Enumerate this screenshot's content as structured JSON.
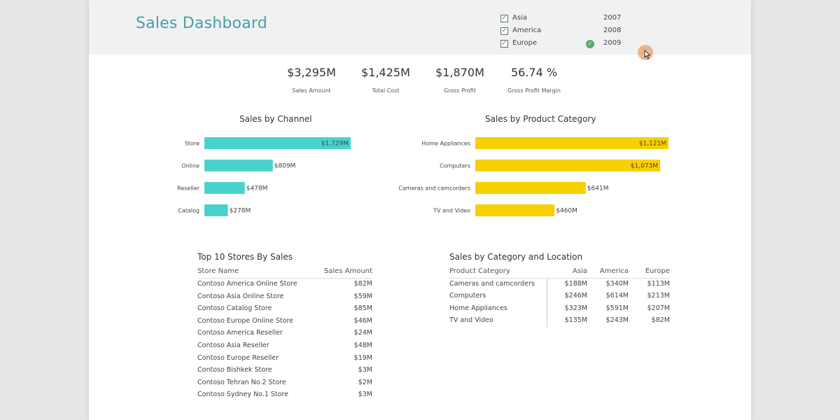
{
  "dashboard": {
    "title": "Sales Dashboard"
  },
  "filters": {
    "regions": [
      {
        "label": "Asia",
        "checked": true
      },
      {
        "label": "America",
        "checked": true
      },
      {
        "label": "Europe",
        "checked": true
      }
    ],
    "years": [
      "2007",
      "2008",
      "2009"
    ],
    "check_mark": "✓"
  },
  "kpis": [
    {
      "value": "$3,295M",
      "label": "Sales Amount"
    },
    {
      "value": "$1,425M",
      "label": "Total Cost"
    },
    {
      "value": "$1,870M",
      "label": "Gross Profit"
    },
    {
      "value": "56.74 %",
      "label": "Gross Profit Margin"
    }
  ],
  "chart_data": [
    {
      "type": "bar",
      "orientation": "horizontal",
      "title": "Sales by Channel",
      "categories": [
        "Store",
        "Online",
        "Reseller",
        "Catalog"
      ],
      "values": [
        1729,
        809,
        478,
        278
      ],
      "value_labels": [
        "$1,729M",
        "$809M",
        "$478M",
        "$278M"
      ],
      "unit": "$M",
      "color": "#48d3cd",
      "xlim": [
        0,
        1729
      ]
    },
    {
      "type": "bar",
      "orientation": "horizontal",
      "title": "Sales by Product Category",
      "categories": [
        "Home Appliances",
        "Computers",
        "Cameras and camcorders",
        "TV and Video"
      ],
      "values": [
        1121,
        1073,
        641,
        460
      ],
      "value_labels": [
        "$1,121M",
        "$1,073M",
        "$641M",
        "$460M"
      ],
      "unit": "$M",
      "color": "#f7d000",
      "xlim": [
        0,
        1121
      ]
    }
  ],
  "top_stores": {
    "title": "Top 10 Stores By Sales",
    "columns": [
      "Store Name",
      "Sales Amount"
    ],
    "rows": [
      [
        "Contoso America Online Store",
        "$82M"
      ],
      [
        "Contoso Asia Online Store",
        "$59M"
      ],
      [
        "Contoso Catalog Store",
        "$85M"
      ],
      [
        "Contoso Europe Online Store",
        "$46M"
      ],
      [
        "Contoso America Reseller",
        "$24M"
      ],
      [
        "Contoso Asia Reseller",
        "$48M"
      ],
      [
        "Contoso Europe Reseller",
        "$19M"
      ],
      [
        "Contoso Bishkek Store",
        "$3M"
      ],
      [
        "Contoso Tehran No.2 Store",
        "$2M"
      ],
      [
        "Contoso Sydney No.1 Store",
        "$3M"
      ]
    ]
  },
  "category_location": {
    "title": "Sales by Category and Location",
    "columns": [
      "Product Category",
      "Asia",
      "America",
      "Europe"
    ],
    "rows": [
      [
        "Cameras and camcorders",
        "$188M",
        "$340M",
        "$113M"
      ],
      [
        "Computers",
        "$246M",
        "$614M",
        "$213M"
      ],
      [
        "Home Appliances",
        "$323M",
        "$591M",
        "$207M"
      ],
      [
        "TV and Video",
        "$135M",
        "$243M",
        "$82M"
      ]
    ]
  }
}
